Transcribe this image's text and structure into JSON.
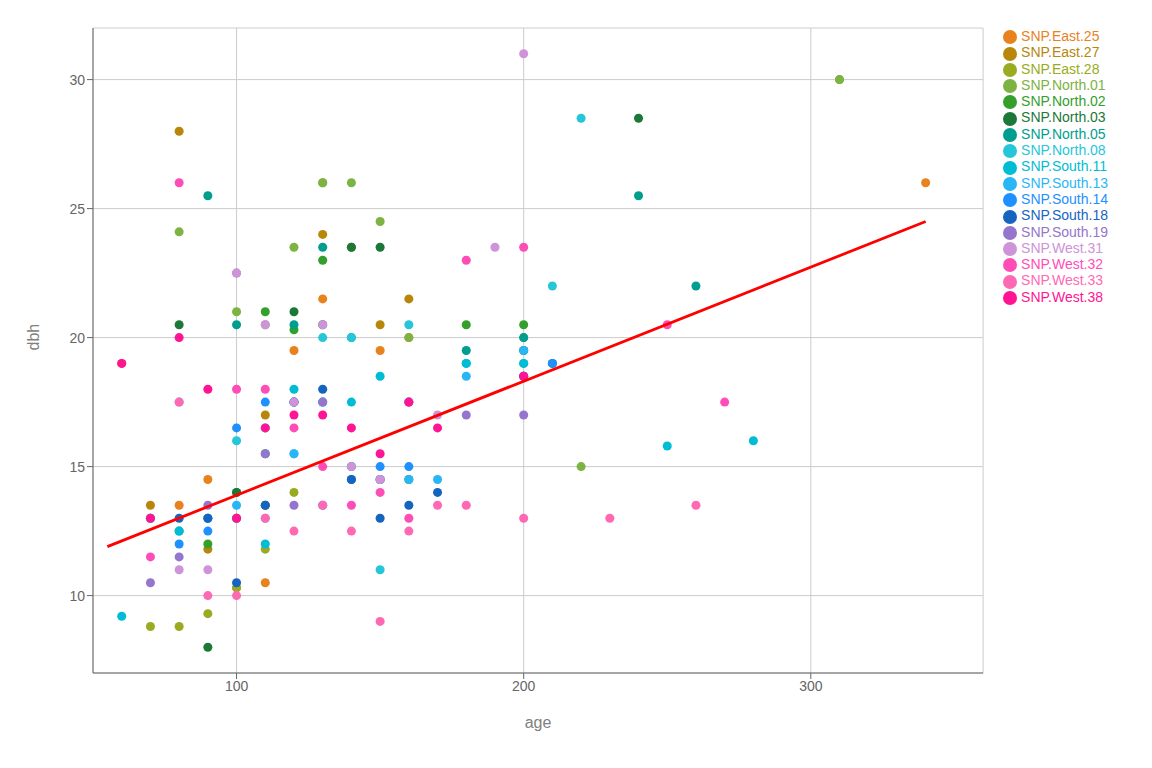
{
  "chart_data": {
    "type": "scatter",
    "xlabel": "age",
    "ylabel": "dbh",
    "xlim": [
      50,
      360
    ],
    "ylim": [
      7,
      32
    ],
    "xticks": [
      100,
      200,
      300
    ],
    "yticks": [
      10,
      15,
      20,
      25,
      30
    ],
    "grid": true,
    "legend": "right",
    "marker": "circle",
    "series": [
      {
        "name": "SNP.East.25",
        "color": "#E8821E",
        "x": [
          60,
          80,
          90,
          100,
          110,
          120,
          130,
          150,
          160,
          340
        ],
        "values": [
          19.0,
          13.5,
          14.5,
          10.3,
          10.5,
          19.5,
          21.5,
          19.5,
          20.0,
          26.0
        ]
      },
      {
        "name": "SNP.East.27",
        "color": "#B8860B",
        "x": [
          70,
          80,
          90,
          100,
          110,
          120,
          130,
          140,
          150,
          160
        ],
        "values": [
          13.5,
          28.0,
          11.8,
          13.0,
          17.0,
          17.5,
          24.0,
          23.5,
          20.5,
          21.5
        ]
      },
      {
        "name": "SNP.East.28",
        "color": "#9AAB22",
        "x": [
          70,
          80,
          90,
          100,
          110,
          120,
          130,
          310
        ],
        "values": [
          8.8,
          8.8,
          9.3,
          10.3,
          11.8,
          14.0,
          26.0,
          30.0
        ]
      },
      {
        "name": "SNP.North.01",
        "color": "#7CB342",
        "x": [
          80,
          100,
          110,
          120,
          130,
          140,
          150,
          160,
          200,
          220,
          310
        ],
        "values": [
          24.1,
          21.0,
          20.5,
          23.5,
          26.0,
          26.0,
          24.5,
          20.0,
          20.0,
          15.0,
          30.0
        ]
      },
      {
        "name": "SNP.North.02",
        "color": "#33A02C",
        "x": [
          90,
          100,
          110,
          120,
          130,
          140,
          150,
          160,
          180,
          200
        ],
        "values": [
          12.0,
          14.0,
          21.0,
          20.3,
          23.0,
          15.0,
          14.5,
          14.5,
          20.5,
          20.5
        ]
      },
      {
        "name": "SNP.North.03",
        "color": "#1B7837",
        "x": [
          80,
          90,
          100,
          110,
          120,
          130,
          140,
          150,
          200,
          210,
          240
        ],
        "values": [
          20.5,
          8.0,
          14.0,
          13.5,
          21.0,
          20.5,
          23.5,
          23.5,
          19.5,
          19.0,
          28.5
        ]
      },
      {
        "name": "SNP.North.05",
        "color": "#009E8E",
        "x": [
          70,
          80,
          90,
          100,
          110,
          120,
          130,
          140,
          180,
          200,
          240,
          260
        ],
        "values": [
          13.0,
          12.5,
          25.5,
          20.5,
          15.5,
          20.5,
          23.5,
          20.0,
          19.5,
          20.0,
          25.5,
          22.0
        ]
      },
      {
        "name": "SNP.North.08",
        "color": "#26C6DA",
        "x": [
          70,
          100,
          110,
          120,
          130,
          140,
          150,
          160,
          180,
          200,
          210,
          220
        ],
        "values": [
          13.0,
          16.0,
          13.0,
          15.5,
          20.0,
          20.0,
          11.0,
          20.5,
          19.0,
          19.0,
          22.0,
          28.5
        ]
      },
      {
        "name": "SNP.South.11",
        "color": "#00BCD4",
        "x": [
          60,
          80,
          90,
          100,
          110,
          120,
          130,
          140,
          150,
          160,
          180,
          200,
          250,
          280
        ],
        "values": [
          9.2,
          12.5,
          13.0,
          13.0,
          12.0,
          18.0,
          17.5,
          17.5,
          18.5,
          17.5,
          19.0,
          19.0,
          15.8,
          16.0
        ]
      },
      {
        "name": "SNP.South.13",
        "color": "#29B6F6",
        "x": [
          80,
          90,
          100,
          110,
          120,
          130,
          140,
          150,
          160,
          170,
          180,
          200
        ],
        "values": [
          17.5,
          13.0,
          13.5,
          16.5,
          15.5,
          17.5,
          15.0,
          14.5,
          14.5,
          14.5,
          18.5,
          19.5
        ]
      },
      {
        "name": "SNP.South.14",
        "color": "#1E90FF",
        "x": [
          80,
          90,
          100,
          110,
          120,
          130,
          140,
          150,
          160,
          200,
          210
        ],
        "values": [
          12.0,
          12.5,
          16.5,
          17.5,
          17.5,
          13.5,
          14.5,
          15.0,
          15.0,
          18.5,
          19.0
        ]
      },
      {
        "name": "SNP.South.18",
        "color": "#1565C0",
        "x": [
          80,
          90,
          100,
          110,
          120,
          130,
          140,
          150,
          160,
          170,
          200
        ],
        "values": [
          13.0,
          13.0,
          10.5,
          13.5,
          17.5,
          18.0,
          14.5,
          13.0,
          13.5,
          14.0,
          18.5
        ]
      },
      {
        "name": "SNP.South.19",
        "color": "#9575CD",
        "x": [
          70,
          80,
          90,
          100,
          110,
          120,
          130,
          150,
          160,
          180,
          200
        ],
        "values": [
          10.5,
          11.5,
          13.5,
          22.5,
          15.5,
          13.5,
          17.5,
          14.5,
          17.5,
          17.0,
          17.0
        ]
      },
      {
        "name": "SNP.West.31",
        "color": "#CE93D8",
        "x": [
          80,
          90,
          100,
          110,
          120,
          130,
          140,
          150,
          170,
          190,
          200
        ],
        "values": [
          11.0,
          11.0,
          22.5,
          20.5,
          17.5,
          20.5,
          15.0,
          14.5,
          17.0,
          23.5,
          31.0
        ]
      },
      {
        "name": "SNP.West.32",
        "color": "#FF4DB8",
        "x": [
          70,
          80,
          100,
          110,
          120,
          130,
          140,
          150,
          160,
          180,
          200,
          250,
          270
        ],
        "values": [
          11.5,
          26.0,
          18.0,
          18.0,
          16.5,
          15.0,
          13.5,
          14.0,
          13.0,
          23.0,
          23.5,
          20.5,
          17.5
        ]
      },
      {
        "name": "SNP.West.33",
        "color": "#FF69B4",
        "x": [
          80,
          90,
          100,
          110,
          120,
          130,
          140,
          150,
          160,
          170,
          180,
          200,
          230,
          260
        ],
        "values": [
          17.5,
          10.0,
          10.0,
          13.0,
          12.5,
          13.5,
          12.5,
          9.0,
          12.5,
          13.5,
          13.5,
          13.0,
          13.0,
          13.5
        ]
      },
      {
        "name": "SNP.West.38",
        "color": "#FF1493",
        "x": [
          60,
          70,
          80,
          90,
          100,
          110,
          120,
          130,
          140,
          150,
          160,
          170,
          200
        ],
        "values": [
          19.0,
          13.0,
          20.0,
          18.0,
          13.0,
          16.5,
          17.0,
          17.0,
          16.5,
          15.5,
          17.5,
          16.5,
          18.5
        ]
      },
      {
        "type": "line",
        "color": "red",
        "line_style": "solid",
        "x": [
          55,
          340
        ],
        "values": [
          11.9,
          24.5
        ]
      }
    ]
  }
}
